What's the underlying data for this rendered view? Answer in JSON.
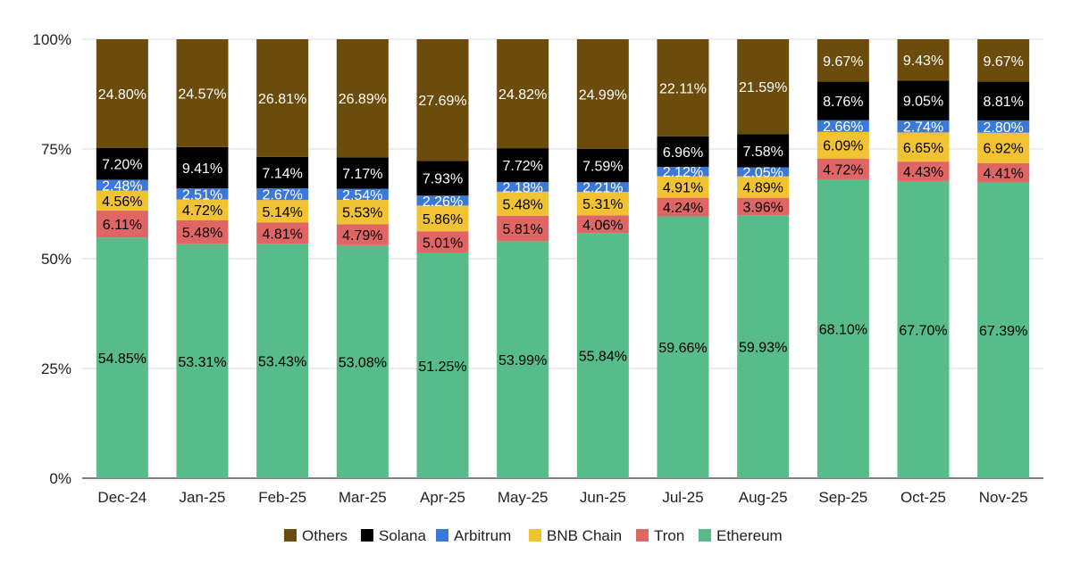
{
  "chart_data": {
    "type": "bar",
    "stacked": true,
    "normalized": true,
    "title": "",
    "xlabel": "",
    "ylabel": "",
    "ylim": [
      0,
      100
    ],
    "yticks": [
      "0%",
      "25%",
      "50%",
      "75%",
      "100%"
    ],
    "ytick_values": [
      0,
      25,
      50,
      75,
      100
    ],
    "grid": true,
    "legend_position": "bottom",
    "categories": [
      "Dec-24",
      "Jan-25",
      "Feb-25",
      "Mar-25",
      "Apr-25",
      "May-25",
      "Jun-25",
      "Jul-25",
      "Aug-25",
      "Sep-25",
      "Oct-25",
      "Nov-25"
    ],
    "series": [
      {
        "name": "Ethereum",
        "color": "#57bb8a",
        "label_color": "#000000",
        "values": [
          54.85,
          53.31,
          53.43,
          53.08,
          51.25,
          53.99,
          55.84,
          59.66,
          59.93,
          68.1,
          67.7,
          67.39
        ],
        "labels": [
          "54.85%",
          "53.31%",
          "53.43%",
          "53.08%",
          "51.25%",
          "53.99%",
          "55.84%",
          "59.66%",
          "59.93%",
          "68.10%",
          "67.70%",
          "67.39%"
        ]
      },
      {
        "name": "Tron",
        "color": "#e06666",
        "label_color": "#000000",
        "values": [
          6.11,
          5.48,
          4.81,
          4.79,
          5.01,
          5.81,
          4.06,
          4.24,
          3.96,
          4.72,
          4.43,
          4.41
        ],
        "labels": [
          "6.11%",
          "5.48%",
          "4.81%",
          "4.79%",
          "5.01%",
          "5.81%",
          "4.06%",
          "4.24%",
          "3.96%",
          "4.72%",
          "4.43%",
          "4.41%"
        ]
      },
      {
        "name": "BNB Chain",
        "color": "#f1c232",
        "label_color": "#000000",
        "values": [
          4.56,
          4.72,
          5.14,
          5.53,
          5.86,
          5.48,
          5.31,
          4.91,
          4.89,
          6.09,
          6.65,
          6.92
        ],
        "labels": [
          "4.56%",
          "4.72%",
          "5.14%",
          "5.53%",
          "5.86%",
          "5.48%",
          "5.31%",
          "4.91%",
          "4.89%",
          "6.09%",
          "6.65%",
          "6.92%"
        ]
      },
      {
        "name": "Arbitrum",
        "color": "#3c78d8",
        "label_color": "#ffffff",
        "values": [
          2.48,
          2.51,
          2.67,
          2.54,
          2.26,
          2.18,
          2.21,
          2.12,
          2.05,
          2.66,
          2.74,
          2.8
        ],
        "labels": [
          "2.48%",
          "2.51%",
          "2.67%",
          "2.54%",
          "2.26%",
          "2.18%",
          "2.21%",
          "2.12%",
          "2.05%",
          "2.66%",
          "2.74%",
          "2.80%"
        ]
      },
      {
        "name": "Solana",
        "color": "#000000",
        "label_color": "#ffffff",
        "values": [
          7.2,
          9.41,
          7.14,
          7.17,
          7.93,
          7.72,
          7.59,
          6.96,
          7.58,
          8.76,
          9.05,
          8.81
        ],
        "labels": [
          "7.20%",
          "9.41%",
          "7.14%",
          "7.17%",
          "7.93%",
          "7.72%",
          "7.59%",
          "6.96%",
          "7.58%",
          "8.76%",
          "9.05%",
          "8.81%"
        ]
      },
      {
        "name": "Others",
        "color": "#6b4c0c",
        "label_color": "#ffffff",
        "values": [
          24.8,
          24.57,
          26.81,
          26.89,
          27.69,
          24.82,
          24.99,
          22.11,
          21.59,
          9.67,
          9.43,
          9.67
        ],
        "labels": [
          "24.80%",
          "24.57%",
          "26.81%",
          "26.89%",
          "27.69%",
          "24.82%",
          "24.99%",
          "22.11%",
          "21.59%",
          "9.67%",
          "9.43%",
          "9.67%"
        ]
      }
    ],
    "legend_order": [
      "Others",
      "Solana",
      "Arbitrum",
      "BNB Chain",
      "Tron",
      "Ethereum"
    ]
  }
}
